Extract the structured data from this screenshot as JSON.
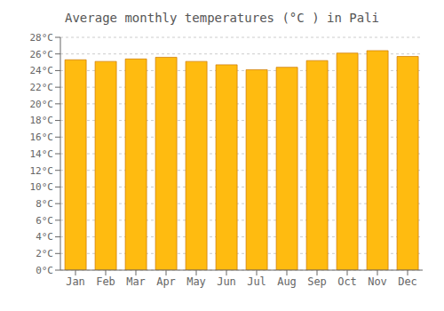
{
  "chart_data": {
    "type": "bar",
    "title": "Average monthly temperatures (°C ) in Pali",
    "categories": [
      "Jan",
      "Feb",
      "Mar",
      "Apr",
      "May",
      "Jun",
      "Jul",
      "Aug",
      "Sep",
      "Oct",
      "Nov",
      "Dec"
    ],
    "values": [
      25.3,
      25.1,
      25.4,
      25.6,
      25.1,
      24.7,
      24.1,
      24.4,
      25.2,
      26.1,
      26.4,
      25.7
    ],
    "color": "#FFBB10",
    "ylim": [
      0,
      28
    ],
    "yticks": [
      {
        "value": 0,
        "label": "0°C"
      },
      {
        "value": 2,
        "label": "2°C"
      },
      {
        "value": 4,
        "label": "4°C"
      },
      {
        "value": 6,
        "label": "6°C"
      },
      {
        "value": 8,
        "label": "8°C"
      },
      {
        "value": 10,
        "label": "10°C"
      },
      {
        "value": 12,
        "label": "12°C"
      },
      {
        "value": 14,
        "label": "14°C"
      },
      {
        "value": 16,
        "label": "16°C"
      },
      {
        "value": 18,
        "label": "18°C"
      },
      {
        "value": 20,
        "label": "20°C"
      },
      {
        "value": 22,
        "label": "22°C"
      },
      {
        "value": 24,
        "label": "24°C"
      },
      {
        "value": 26,
        "label": "26°C"
      },
      {
        "value": 28,
        "label": "28°C"
      }
    ],
    "grid": true
  }
}
